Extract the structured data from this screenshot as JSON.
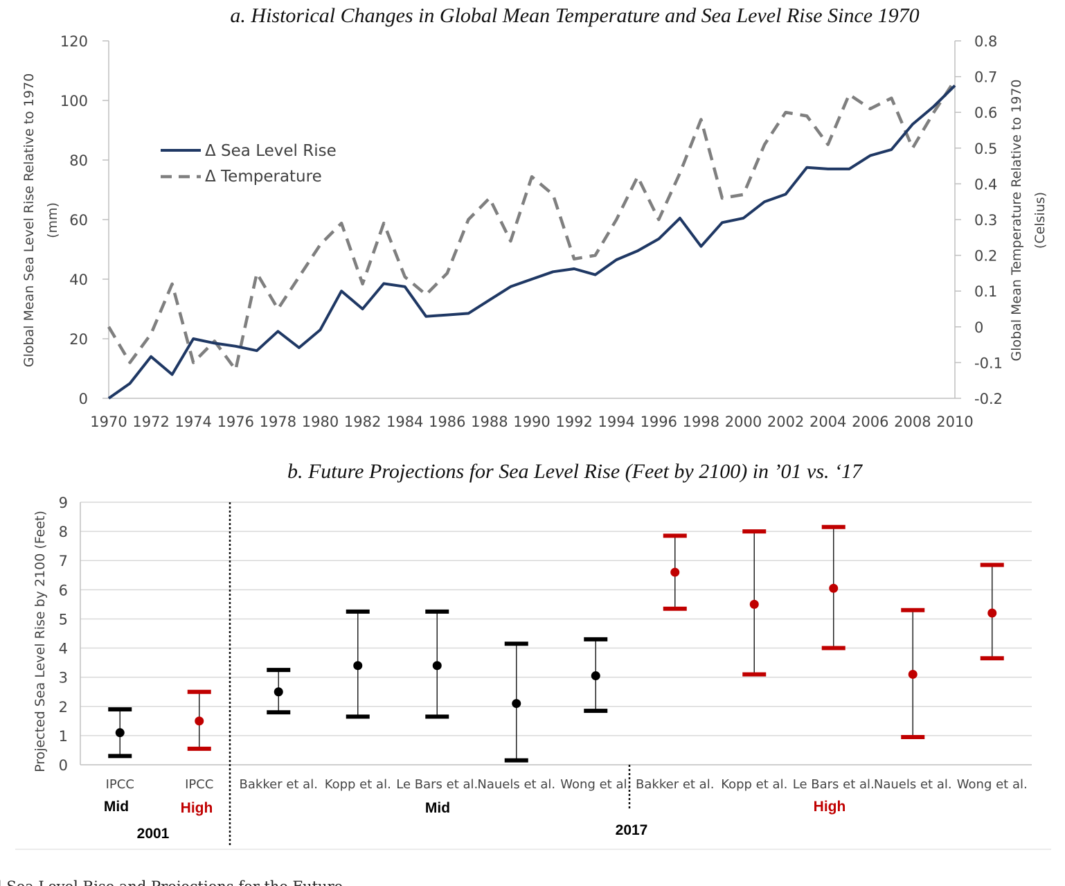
{
  "caption": "l Sea Level Rise and Projections for the Future",
  "chart_data": [
    {
      "type": "line",
      "title": "a. Historical Changes in Global Mean Temperature and Sea Level Rise Since 1970",
      "ylabel": [
        "Global Mean Sea Level Rise Relative to 1970",
        "(mm)"
      ],
      "y2label": [
        "Global Mean Temperature Relative to 1970",
        "(Celsius)"
      ],
      "ylim": [
        0,
        120
      ],
      "y_ticks": [
        0,
        20,
        40,
        60,
        80,
        100,
        120
      ],
      "y2lim": [
        -0.2,
        0.8
      ],
      "y2_ticks": [
        "-0.2",
        "-0.1",
        "0",
        "0.1",
        "0.2",
        "0.3",
        "0.4",
        "0.5",
        "0.6",
        "0.7",
        "0.8"
      ],
      "x_ticks": [
        "1970",
        "1972",
        "1974",
        "1976",
        "1978",
        "1980",
        "1982",
        "1984",
        "1986",
        "1988",
        "1990",
        "1992",
        "1994",
        "1996",
        "1998",
        "2000",
        "2002",
        "2004",
        "2006",
        "2008",
        "2010"
      ],
      "legend_position": "upper-left",
      "x": [
        1970,
        1971,
        1972,
        1973,
        1974,
        1975,
        1976,
        1977,
        1978,
        1979,
        1980,
        1981,
        1982,
        1983,
        1984,
        1985,
        1986,
        1987,
        1988,
        1989,
        1990,
        1991,
        1992,
        1993,
        1994,
        1995,
        1996,
        1997,
        1998,
        1999,
        2000,
        2001,
        2002,
        2003,
        2004,
        2005,
        2006,
        2007,
        2008,
        2009,
        2010
      ],
      "series": [
        {
          "name": "Δ Sea Level Rise",
          "axis": "left",
          "style": "solid",
          "color": "#1f3864",
          "values": [
            0,
            5,
            14,
            8,
            20,
            18.5,
            17.5,
            16,
            22.5,
            17,
            23,
            36,
            30,
            38.5,
            37.5,
            27.5,
            28,
            28.5,
            33,
            37.5,
            40,
            42.5,
            43.5,
            41.5,
            46.5,
            49.5,
            53.5,
            60.5,
            51,
            59,
            60.5,
            66,
            68.5,
            77.5,
            77,
            77,
            81.5,
            83.5,
            92,
            98,
            105
          ]
        },
        {
          "name": "Δ Temperature",
          "axis": "right",
          "style": "dashed",
          "color": "#7f7f7f",
          "values": [
            0,
            -0.1,
            -0.02,
            0.12,
            -0.1,
            -0.04,
            -0.12,
            0.15,
            0.05,
            0.14,
            0.23,
            0.29,
            0.12,
            0.29,
            0.14,
            0.09,
            0.15,
            0.3,
            0.36,
            0.24,
            0.42,
            0.37,
            0.19,
            0.2,
            0.3,
            0.42,
            0.3,
            0.43,
            0.58,
            0.36,
            0.37,
            0.51,
            0.6,
            0.59,
            0.51,
            0.65,
            0.61,
            0.64,
            0.5,
            0.6,
            0.69
          ]
        }
      ]
    },
    {
      "type": "errorbar",
      "title": "b. Future Projections for Sea Level Rise (Feet by 2100) in ’01 vs. ‘17",
      "ylabel": "Projected Sea Level Rise by 2100 (Feet)",
      "ylim": [
        0,
        9
      ],
      "y_ticks": [
        0,
        1,
        2,
        3,
        4,
        5,
        6,
        7,
        8,
        9
      ],
      "colors": {
        "mid": "#000000",
        "high": "#c00000"
      },
      "categories": [
        "IPCC",
        "IPCC",
        "Bakker et al.",
        "Kopp et al.",
        "Le Bars et al.",
        "Nauels et al.",
        "Wong et al.",
        "Bakker et al.",
        "Kopp et al.",
        "Le Bars et al.",
        "Nauels et al.",
        "Wong et al."
      ],
      "points": [
        {
          "label": "IPCC",
          "scenario": "mid",
          "low": 0.3,
          "mid": 1.1,
          "high": 1.9
        },
        {
          "label": "IPCC",
          "scenario": "high",
          "low": 0.55,
          "mid": 1.5,
          "high": 2.5
        },
        {
          "label": "Bakker et al.",
          "scenario": "mid",
          "low": 1.8,
          "mid": 2.5,
          "high": 3.25
        },
        {
          "label": "Kopp et al.",
          "scenario": "mid",
          "low": 1.65,
          "mid": 3.4,
          "high": 5.25
        },
        {
          "label": "Le Bars et al.",
          "scenario": "mid",
          "low": 1.65,
          "mid": 3.4,
          "high": 5.25
        },
        {
          "label": "Nauels et al.",
          "scenario": "mid",
          "low": 0.15,
          "mid": 2.1,
          "high": 4.15
        },
        {
          "label": "Wong et al.",
          "scenario": "mid",
          "low": 1.85,
          "mid": 3.05,
          "high": 4.3
        },
        {
          "label": "Bakker et al.",
          "scenario": "high",
          "low": 5.35,
          "mid": 6.6,
          "high": 7.85
        },
        {
          "label": "Kopp et al.",
          "scenario": "high",
          "low": 3.1,
          "mid": 5.5,
          "high": 8.0
        },
        {
          "label": "Le Bars et al.",
          "scenario": "high",
          "low": 4.0,
          "mid": 6.05,
          "high": 8.15
        },
        {
          "label": "Nauels et al.",
          "scenario": "high",
          "low": 0.95,
          "mid": 3.1,
          "high": 5.3
        },
        {
          "label": "Wong et al.",
          "scenario": "high",
          "low": 3.65,
          "mid": 5.2,
          "high": 6.85
        }
      ],
      "group_labels": {
        "ipcc_mid": "Mid",
        "ipcc_high": "High",
        "year_2001": "2001",
        "mid_2017": "Mid",
        "high_2017": "High",
        "year_2017": "2017"
      }
    }
  ]
}
